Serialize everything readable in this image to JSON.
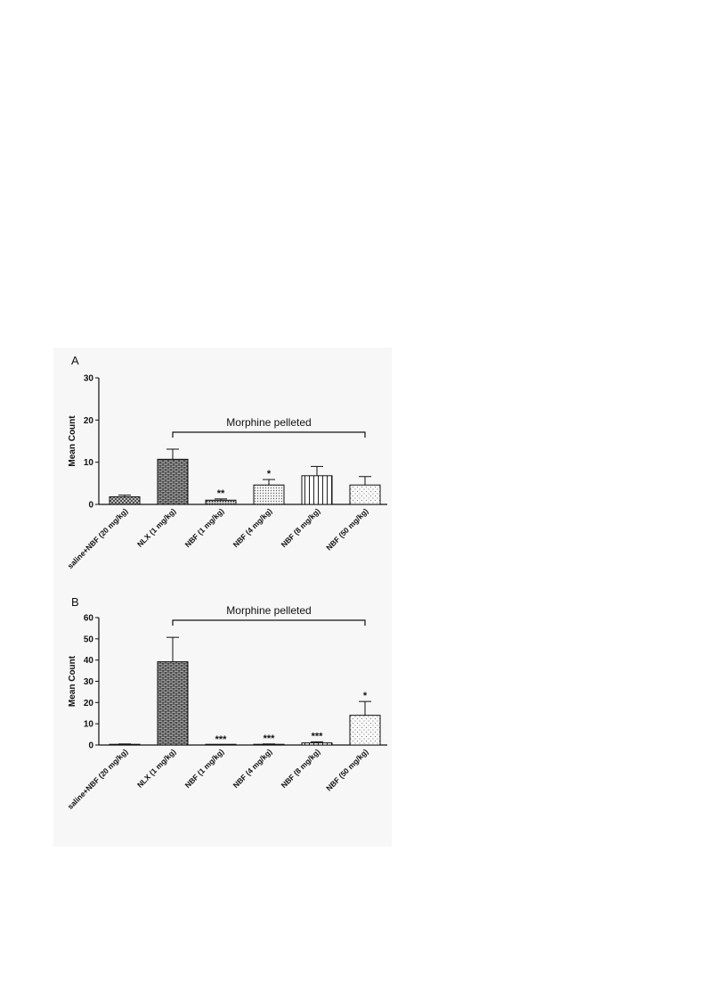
{
  "chart_data": [
    {
      "type": "bar",
      "panel": "A",
      "categories": [
        "saline+NBF (20 mg/kg)",
        "NLX (1 mg/kg)",
        "NBF (1 mg/kg)",
        "NBF (4 mg/kg)",
        "NBF (8 mg/kg)",
        "NBF (50 mg/kg)"
      ],
      "values": [
        1.8,
        10.7,
        1.0,
        4.6,
        6.8,
        4.6
      ],
      "errors": [
        0.4,
        2.4,
        0.3,
        1.3,
        2.2,
        2.0
      ],
      "significance": [
        "",
        "",
        "**",
        "*",
        "",
        ""
      ],
      "patterns": [
        "crosshatch",
        "brick",
        "dense-dots",
        "fine-dots",
        "vertical",
        "sparse-dots"
      ],
      "ylabel": "Mean Count",
      "ylim": [
        0,
        30
      ],
      "yticks": [
        "0",
        "10",
        "20",
        "30"
      ],
      "bracket": {
        "label": "Morphine pelleted",
        "from": 1,
        "to": 5
      }
    },
    {
      "type": "bar",
      "panel": "B",
      "categories": [
        "saline+NBF (20 mg/kg)",
        "NLX (1 mg/kg)",
        "NBF (1 mg/kg)",
        "NBF (4 mg/kg)",
        "NBF (8 mg/kg)",
        "NBF (50 mg/kg)"
      ],
      "values": [
        0.3,
        39.2,
        0.0,
        0.3,
        1.0,
        14.0
      ],
      "errors": [
        0.2,
        11.5,
        0.0,
        0.2,
        0.5,
        6.5
      ],
      "significance": [
        "",
        "",
        "***",
        "***",
        "***",
        "*"
      ],
      "patterns": [
        "crosshatch",
        "brick",
        "dense-dots",
        "fine-dots",
        "vertical",
        "sparse-dots"
      ],
      "ylabel": "Mean Count",
      "ylim": [
        0,
        60
      ],
      "yticks": [
        "0",
        "10",
        "20",
        "30",
        "40",
        "50",
        "60"
      ],
      "bracket": {
        "label": "Morphine pelleted",
        "from": 1,
        "to": 5
      }
    }
  ]
}
